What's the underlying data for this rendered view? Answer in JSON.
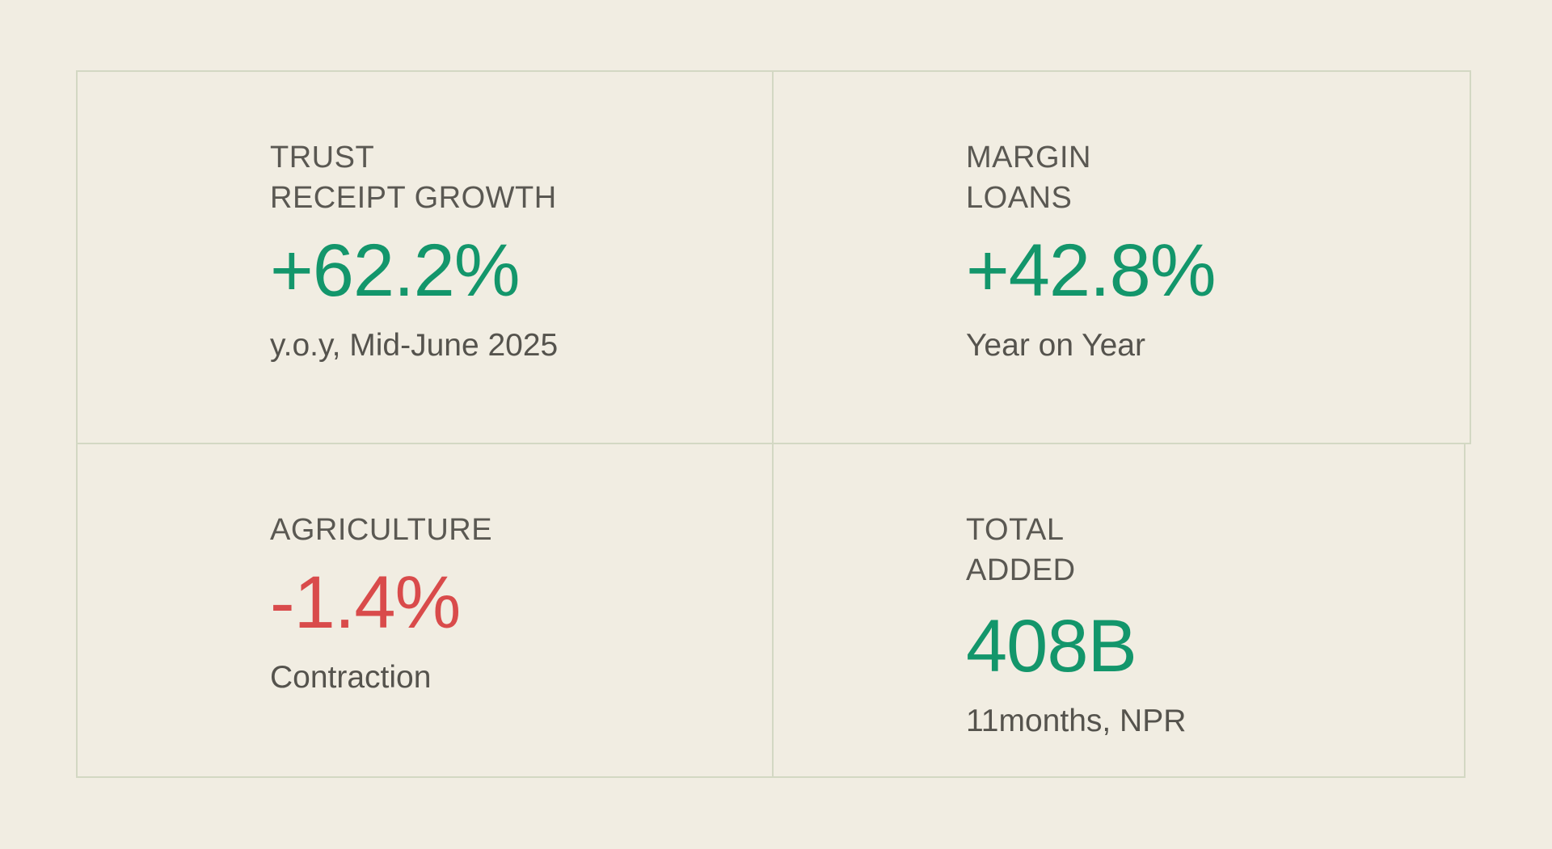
{
  "colors": {
    "background": "#f1ede2",
    "border": "#d3d8c3",
    "positive": "#13966b",
    "negative": "#d94b4b",
    "text": "#55534d"
  },
  "stats": [
    {
      "label_line1": "TRUST",
      "label_line2": "RECEIPT GROWTH",
      "value": "+62.2%",
      "note": "y.o.y, Mid-June 2025"
    },
    {
      "label_line1": "MARGIN",
      "label_line2": "LOANS",
      "value": "+42.8%",
      "note": "Year on Year"
    },
    {
      "label_line1": "AGRICULTURE",
      "value": "-1.4%",
      "note": "Contraction"
    },
    {
      "label_line1": "TOTAL",
      "label_line2": "ADDED",
      "value": "408B",
      "note": "11months, NPR"
    }
  ]
}
